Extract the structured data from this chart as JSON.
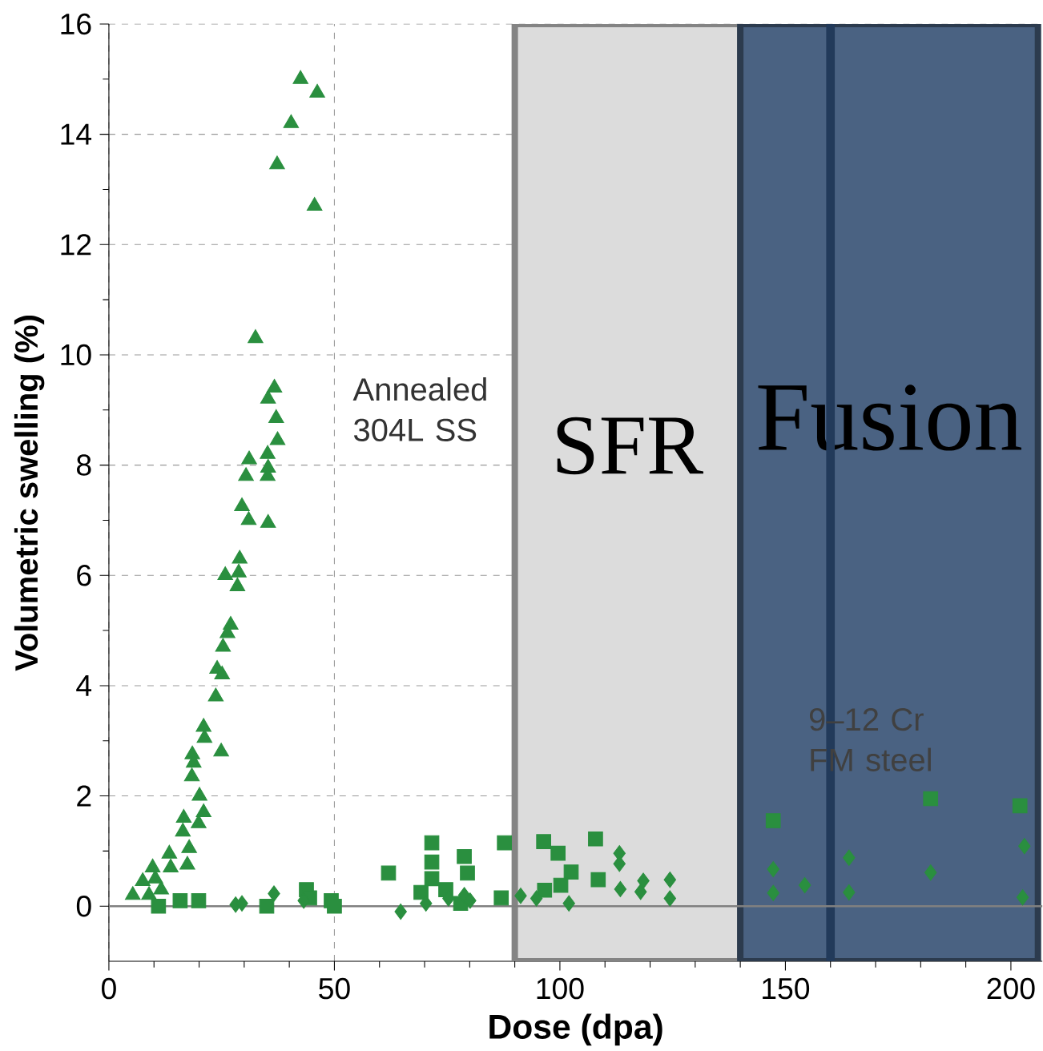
{
  "chart_data": {
    "type": "scatter",
    "xlabel": "Dose (dpa)",
    "ylabel": "Volumetric swelling (%)",
    "xlim": [
      0,
      207
    ],
    "ylim": [
      -1,
      16
    ],
    "xticks": [
      0,
      50,
      100,
      150,
      200
    ],
    "yticks": [
      0,
      2,
      4,
      6,
      8,
      10,
      12,
      14,
      16
    ],
    "grid": true,
    "annotations": [
      "Annealed 304L SS",
      "9–12 Cr FM steel"
    ],
    "bands": [
      {
        "axis": "x",
        "from": 90,
        "to": 140,
        "label": "SFR",
        "color": "#dcdcdc"
      },
      {
        "axis": "x",
        "from": 140,
        "to": 206,
        "label": "Fusion",
        "color": "#4a6282"
      }
    ],
    "ref_lines": [
      {
        "axis": "x",
        "value": 160,
        "color": "#223a5a"
      },
      {
        "axis": "y",
        "value": 0,
        "color": "#808080"
      }
    ],
    "series": [
      {
        "color": "#2a8f3f",
        "marker": "triangle",
        "x": [
          42.5,
          46.2,
          40.4,
          37.3,
          45.6,
          32.5,
          36.7,
          35.3,
          37.1,
          37.4,
          31.1,
          30.4,
          35.2,
          35.3,
          35.2,
          29.5,
          31,
          35.3,
          29,
          28.8,
          25.8,
          28.5,
          27,
          26.3,
          25.3,
          24,
          25.1,
          23.7,
          21,
          21.2,
          24.9,
          18.5,
          18.8,
          18.4,
          20.1,
          21,
          19.9,
          16.6,
          16.4,
          17.8,
          13.4,
          17.4,
          13.7,
          9.7,
          10.3,
          7.5,
          5.3,
          8.9,
          11.6
        ],
        "values": [
          15.0,
          14.75,
          14.2,
          13.45,
          12.7,
          10.3,
          9.4,
          9.2,
          8.85,
          8.45,
          8.1,
          7.8,
          8.2,
          7.95,
          7.8,
          7.25,
          7.0,
          6.95,
          6.3,
          6.05,
          6.0,
          5.8,
          5.1,
          4.95,
          4.7,
          4.3,
          4.2,
          3.8,
          3.25,
          3.05,
          2.8,
          2.75,
          2.6,
          2.35,
          2.0,
          1.7,
          1.5,
          1.6,
          1.35,
          1.05,
          0.95,
          0.75,
          0.7,
          0.7,
          0.5,
          0.45,
          0.2,
          0.2,
          0.3
        ]
      },
      {
        "color": "#2a8f3f",
        "marker": "square",
        "x": [
          11,
          15.8,
          19.9,
          35,
          43.8,
          44.5,
          49.3,
          50,
          62,
          71.6,
          71.6,
          71.6,
          69.2,
          74.7,
          78.8,
          79.5,
          78,
          87.7,
          87,
          96.4,
          99.6,
          102.5,
          107.9,
          108.5,
          96.6,
          100.2,
          147.3,
          182.2,
          202
        ],
        "values": [
          0,
          0.1,
          0.1,
          0,
          0.3,
          0.15,
          0.1,
          0,
          0.6,
          1.15,
          0.8,
          0.5,
          0.25,
          0.3,
          0.9,
          0.6,
          0.05,
          1.15,
          0.15,
          1.17,
          0.96,
          0.62,
          1.22,
          0.48,
          0.29,
          0.38,
          1.55,
          1.95,
          1.82
        ]
      },
      {
        "color": "#2a8f3f",
        "marker": "diamond",
        "x": [
          28.1,
          29.5,
          36.6,
          43.2,
          64.7,
          70.3,
          75.3,
          78.8,
          80.1,
          91.3,
          94.8,
          102,
          113.2,
          113.2,
          113.4,
          117.9,
          118.5,
          124.4,
          124.4,
          147.3,
          147.3,
          154.3,
          164.1,
          164.1,
          182.2,
          203,
          202.6
        ],
        "values": [
          0.03,
          0.05,
          0.23,
          0.1,
          -0.1,
          0.05,
          0.14,
          0.2,
          0.1,
          0.19,
          0.14,
          0.05,
          0.96,
          0.77,
          0.31,
          0.26,
          0.46,
          0.48,
          0.14,
          0.67,
          0.24,
          0.38,
          0.88,
          0.25,
          0.61,
          1.09,
          0.16
        ]
      }
    ]
  }
}
